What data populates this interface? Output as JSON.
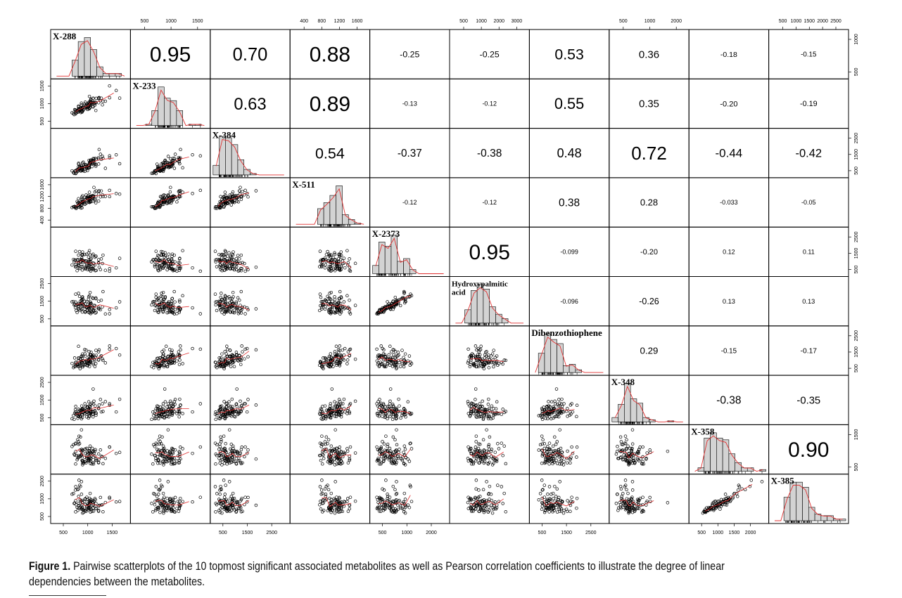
{
  "chart_data": {
    "type": "scatter-matrix",
    "variables": [
      "X-288",
      "X-233",
      "X-384",
      "X-511",
      "X-2373",
      "Hydroxypalmitic acid",
      "Dibenzothiophene",
      "X-348",
      "X-358",
      "X-385"
    ],
    "variable_lines": [
      [
        "X-288"
      ],
      [
        "X-233"
      ],
      [
        "X-384"
      ],
      [
        "X-511"
      ],
      [
        "X-2373"
      ],
      [
        "Hydroxypalmitic",
        "acid"
      ],
      [
        "Dibenzothiophene"
      ],
      [
        "X-348"
      ],
      [
        "X-358"
      ],
      [
        "X-385"
      ]
    ],
    "ranges": [
      [
        300,
        1900
      ],
      [
        300,
        1900
      ],
      [
        300,
        3100
      ],
      [
        300,
        1700
      ],
      [
        400,
        3000
      ],
      [
        400,
        3000
      ],
      [
        300,
        3000
      ],
      [
        300,
        2600
      ],
      [
        300,
        2600
      ],
      [
        400,
        2700
      ]
    ],
    "centers": [
      1000,
      1000,
      900,
      1050,
      1000,
      1400,
      1050,
      900,
      1100,
      1250
    ],
    "correlations": [
      [
        null,
        0.95,
        0.7,
        0.88,
        -0.25,
        -0.25,
        0.53,
        0.36,
        -0.18,
        -0.15
      ],
      [
        null,
        null,
        0.63,
        0.89,
        -0.13,
        -0.12,
        0.55,
        0.35,
        -0.2,
        -0.19
      ],
      [
        null,
        null,
        null,
        0.54,
        -0.37,
        -0.38,
        0.48,
        0.72,
        -0.44,
        -0.42
      ],
      [
        null,
        null,
        null,
        null,
        -0.12,
        -0.12,
        0.38,
        0.28,
        -0.033,
        -0.05
      ],
      [
        null,
        null,
        null,
        null,
        null,
        0.95,
        -0.099,
        -0.2,
        0.12,
        0.11
      ],
      [
        null,
        null,
        null,
        null,
        null,
        null,
        -0.096,
        -0.26,
        0.13,
        0.13
      ],
      [
        null,
        null,
        null,
        null,
        null,
        null,
        null,
        0.29,
        -0.15,
        -0.17
      ],
      [
        null,
        null,
        null,
        null,
        null,
        null,
        null,
        null,
        -0.38,
        -0.35
      ],
      [
        null,
        null,
        null,
        null,
        null,
        null,
        null,
        null,
        null,
        0.9
      ],
      [
        null,
        null,
        null,
        null,
        null,
        null,
        null,
        null,
        null,
        null
      ]
    ],
    "correlation_labels": [
      [
        null,
        "0.95",
        "0.70",
        "0.88",
        "-0.25",
        "-0.25",
        "0.53",
        "0.36",
        "-0.18",
        "-0.15"
      ],
      [
        null,
        null,
        "0.63",
        "0.89",
        "-0.13",
        "-0.12",
        "0.55",
        "0.35",
        "-0.20",
        "-0.19"
      ],
      [
        null,
        null,
        null,
        "0.54",
        "-0.37",
        "-0.38",
        "0.48",
        "0.72",
        "-0.44",
        "-0.42"
      ],
      [
        null,
        null,
        null,
        null,
        "-0.12",
        "-0.12",
        "0.38",
        "0.28",
        "-0.033",
        "-0.05"
      ],
      [
        null,
        null,
        null,
        null,
        null,
        "0.95",
        "-0.099",
        "-0.20",
        "0.12",
        "0.11"
      ],
      [
        null,
        null,
        null,
        null,
        null,
        null,
        "-0.096",
        "-0.26",
        "0.13",
        "0.13"
      ],
      [
        null,
        null,
        null,
        null,
        null,
        null,
        null,
        "0.29",
        "-0.15",
        "-0.17"
      ],
      [
        null,
        null,
        null,
        null,
        null,
        null,
        null,
        null,
        "-0.38",
        "-0.35"
      ],
      [
        null,
        null,
        null,
        null,
        null,
        null,
        null,
        null,
        null,
        "0.90"
      ],
      [
        null,
        null,
        null,
        null,
        null,
        null,
        null,
        null,
        null,
        null
      ]
    ],
    "top_axis": [
      {
        "col": 1,
        "ticks": [
          "500",
          "1000",
          "1500"
        ]
      },
      {
        "col": 3,
        "ticks": [
          "400",
          "800",
          "1200",
          "1600"
        ]
      },
      {
        "col": 5,
        "ticks": [
          "500",
          "1000",
          "2000",
          "3000"
        ]
      },
      {
        "col": 7,
        "ticks": [
          "500",
          "1000",
          "2000"
        ]
      },
      {
        "col": 9,
        "ticks": [
          "500",
          "1000",
          "1500",
          "2000",
          "2500"
        ]
      }
    ],
    "bottom_axis": [
      {
        "col": 0,
        "ticks": [
          "500",
          "1000",
          "1500"
        ]
      },
      {
        "col": 2,
        "ticks": [
          "500",
          "1500",
          "2500"
        ]
      },
      {
        "col": 4,
        "ticks": [
          "500",
          "1000",
          "2000"
        ]
      },
      {
        "col": 6,
        "ticks": [
          "500",
          "1500",
          "2500"
        ]
      },
      {
        "col": 8,
        "ticks": [
          "500",
          "1000",
          "1500",
          "2000"
        ]
      }
    ],
    "left_axis": [
      {
        "row": 1,
        "ticks": [
          "500",
          "1000",
          "1500"
        ]
      },
      {
        "row": 3,
        "ticks": [
          "400",
          "800",
          "1200",
          "1600"
        ]
      },
      {
        "row": 5,
        "ticks": [
          "500",
          "1500",
          "2500"
        ]
      },
      {
        "row": 7,
        "ticks": [
          "500",
          "1500",
          "2500"
        ]
      },
      {
        "row": 9,
        "ticks": [
          "500",
          "1500",
          "2500"
        ]
      }
    ],
    "right_axis": [
      {
        "row": 0,
        "ticks": [
          "500",
          "1000"
        ]
      },
      {
        "row": 2,
        "ticks": [
          "500",
          "1500",
          "2500"
        ]
      },
      {
        "row": 4,
        "ticks": [
          "500",
          "1500",
          "2500"
        ]
      },
      {
        "row": 6,
        "ticks": [
          "500",
          "1500",
          "2500"
        ]
      },
      {
        "row": 8,
        "ticks": [
          "500",
          "1500"
        ]
      }
    ],
    "histogram_colors": {
      "bar": "#d3d3d3",
      "density": "#e03030"
    },
    "smoother_color": "#e03030",
    "point_style": "open-circle"
  },
  "caption": {
    "label": "Figure 1.",
    "text": " Pairwise scatterplots of the 10 topmost significant associated metabolites as well as Pearson correlation coefficients to illustrate the degree of linear dependencies between the metabolites."
  }
}
